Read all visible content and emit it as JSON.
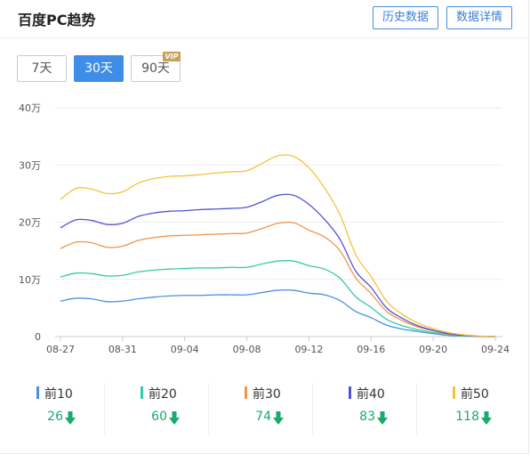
{
  "header": {
    "title": "百度PC趋势",
    "history_button": "历史数据",
    "detail_button": "数据详情"
  },
  "ranges": {
    "r7": "7天",
    "r30": "30天",
    "r90": "90天",
    "vip_badge": "VIP",
    "selected": "30天"
  },
  "chart_data": {
    "type": "line",
    "y_ticks": [
      "40万",
      "30万",
      "20万",
      "10万",
      "0"
    ],
    "y_tick_values": [
      40,
      30,
      20,
      10,
      0
    ],
    "ylim": [
      0,
      40
    ],
    "x_tick_labels": [
      "08-27",
      "08-31",
      "09-04",
      "09-08",
      "09-12",
      "09-16",
      "09-20",
      "09-24"
    ],
    "x_dates": [
      "08-27",
      "08-28",
      "08-29",
      "08-30",
      "08-31",
      "09-01",
      "09-02",
      "09-03",
      "09-04",
      "09-05",
      "09-06",
      "09-07",
      "09-08",
      "09-09",
      "09-10",
      "09-11",
      "09-12",
      "09-13",
      "09-14",
      "09-15",
      "09-16",
      "09-17",
      "09-18",
      "09-19",
      "09-20",
      "09-21",
      "09-22",
      "09-23",
      "09-24"
    ],
    "grid": true,
    "series": [
      {
        "name": "前10",
        "color": "#4a8fe2",
        "values": [
          6.2,
          6.7,
          6.6,
          6.1,
          6.2,
          6.6,
          6.9,
          7.1,
          7.2,
          7.2,
          7.3,
          7.3,
          7.3,
          7.7,
          8.1,
          8.1,
          7.6,
          7.3,
          6.3,
          4.4,
          3.3,
          2.0,
          1.3,
          0.9,
          0.5,
          0.2,
          0.1,
          0.05,
          0.0
        ]
      },
      {
        "name": "前20",
        "color": "#36c9a6",
        "values": [
          10.4,
          11.1,
          11.0,
          10.6,
          10.7,
          11.3,
          11.6,
          11.8,
          11.9,
          12.0,
          12.0,
          12.1,
          12.1,
          12.7,
          13.2,
          13.2,
          12.4,
          11.8,
          10.2,
          7.0,
          5.1,
          3.0,
          1.9,
          1.2,
          0.7,
          0.3,
          0.1,
          0.05,
          0.0
        ]
      },
      {
        "name": "前30",
        "color": "#f0954a",
        "values": [
          15.4,
          16.5,
          16.4,
          15.6,
          15.8,
          16.8,
          17.3,
          17.6,
          17.7,
          17.8,
          17.9,
          18.0,
          18.1,
          18.9,
          19.8,
          19.9,
          18.6,
          17.4,
          15.0,
          10.3,
          7.5,
          4.4,
          2.8,
          1.7,
          1.0,
          0.4,
          0.2,
          0.05,
          0.0
        ]
      },
      {
        "name": "前40",
        "color": "#5353d6",
        "values": [
          19.0,
          20.4,
          20.3,
          19.6,
          19.8,
          21.0,
          21.6,
          21.9,
          22.0,
          22.2,
          22.3,
          22.4,
          22.6,
          23.6,
          24.7,
          24.7,
          23.1,
          20.5,
          17.0,
          11.5,
          8.6,
          5.0,
          3.2,
          1.9,
          1.1,
          0.5,
          0.2,
          0.05,
          0.0
        ]
      },
      {
        "name": "前50",
        "color": "#f3c33a",
        "values": [
          24.0,
          25.9,
          25.8,
          25.0,
          25.3,
          26.8,
          27.6,
          28.0,
          28.1,
          28.3,
          28.6,
          28.8,
          29.0,
          30.3,
          31.6,
          31.5,
          29.5,
          26.0,
          21.3,
          14.4,
          10.5,
          6.2,
          3.9,
          2.4,
          1.4,
          0.7,
          0.3,
          0.1,
          0.0
        ]
      }
    ]
  },
  "legend": [
    {
      "name": "前10",
      "value": "26",
      "color": "#4a8fe2"
    },
    {
      "name": "前20",
      "value": "60",
      "color": "#36c9a6"
    },
    {
      "name": "前30",
      "value": "74",
      "color": "#f0954a"
    },
    {
      "name": "前40",
      "value": "83",
      "color": "#5353d6"
    },
    {
      "name": "前50",
      "value": "118",
      "color": "#f3c33a"
    }
  ],
  "icons": {
    "trend": "down-arrow-icon",
    "trend_color": "#1aaa6b"
  }
}
